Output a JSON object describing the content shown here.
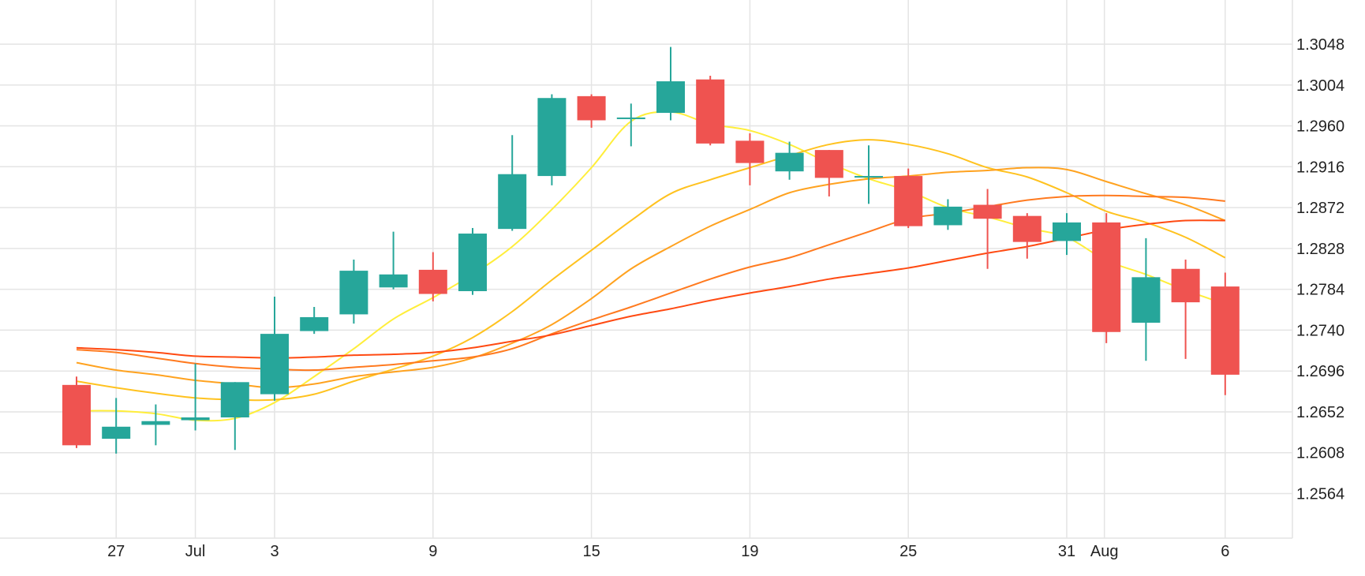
{
  "chart_data": {
    "type": "candlestick",
    "colors": {
      "up": "#26a69a",
      "down": "#ef5350",
      "grid": "#e4e4e4",
      "ma_5": "#ffee3b",
      "ma_10": "#ffc21f",
      "ma_20": "#ffa21f",
      "ma_30": "#ff7a1f",
      "ma_60": "#ff4a12"
    },
    "x_ticks": [
      "27",
      "Jul",
      "3",
      "9",
      "15",
      "19",
      "25",
      "31",
      "Aug",
      "6"
    ],
    "y_ticks": [
      "1.3048",
      "1.3004",
      "1.2960",
      "1.2916",
      "1.2872",
      "1.2828",
      "1.2784",
      "1.2740",
      "1.2696",
      "1.2652",
      "1.2608",
      "1.2564"
    ],
    "ylim": [
      1.2516,
      1.3092
    ],
    "candles": [
      {
        "date": "2018-06-26",
        "open": 1.2681,
        "high": 1.269,
        "low": 1.2613,
        "close": 1.2616
      },
      {
        "date": "2018-06-27",
        "open": 1.2623,
        "high": 1.2667,
        "low": 1.2607,
        "close": 1.2636
      },
      {
        "date": "2018-06-28",
        "open": 1.2638,
        "high": 1.266,
        "low": 1.2616,
        "close": 1.2642
      },
      {
        "date": "2018-06-29",
        "open": 1.2643,
        "high": 1.2704,
        "low": 1.2632,
        "close": 1.2646
      },
      {
        "date": "2018-07-02",
        "open": 1.2646,
        "high": 1.2684,
        "low": 1.2611,
        "close": 1.2684
      },
      {
        "date": "2018-07-03",
        "open": 1.2671,
        "high": 1.2776,
        "low": 1.2664,
        "close": 1.2736
      },
      {
        "date": "2018-07-04",
        "open": 1.2739,
        "high": 1.2765,
        "low": 1.2736,
        "close": 1.2754
      },
      {
        "date": "2018-07-05",
        "open": 1.2757,
        "high": 1.2816,
        "low": 1.2747,
        "close": 1.2804
      },
      {
        "date": "2018-07-06",
        "open": 1.2786,
        "high": 1.2846,
        "low": 1.2784,
        "close": 1.28
      },
      {
        "date": "2018-07-09",
        "open": 1.2805,
        "high": 1.2824,
        "low": 1.2771,
        "close": 1.2779
      },
      {
        "date": "2018-07-10",
        "open": 1.2782,
        "high": 1.285,
        "low": 1.2778,
        "close": 1.2844
      },
      {
        "date": "2018-07-11",
        "open": 1.2849,
        "high": 1.295,
        "low": 1.2847,
        "close": 1.2908
      },
      {
        "date": "2018-07-12",
        "open": 1.2906,
        "high": 1.2994,
        "low": 1.2896,
        "close": 1.299
      },
      {
        "date": "2018-07-13",
        "open": 1.2992,
        "high": 1.2994,
        "low": 1.2958,
        "close": 1.2966
      },
      {
        "date": "2018-07-16",
        "open": 1.2969,
        "high": 1.2984,
        "low": 1.2938,
        "close": 1.2969
      },
      {
        "date": "2018-07-17",
        "open": 1.2974,
        "high": 1.3045,
        "low": 1.2966,
        "close": 1.3008
      },
      {
        "date": "2018-07-18",
        "open": 1.301,
        "high": 1.3014,
        "low": 1.2939,
        "close": 1.2941
      },
      {
        "date": "2018-07-19",
        "open": 1.2944,
        "high": 1.2952,
        "low": 1.2896,
        "close": 1.292
      },
      {
        "date": "2018-07-20",
        "open": 1.2911,
        "high": 1.2943,
        "low": 1.2902,
        "close": 1.2931
      },
      {
        "date": "2018-07-23",
        "open": 1.2934,
        "high": 1.2934,
        "low": 1.2884,
        "close": 1.2904
      },
      {
        "date": "2018-07-24",
        "open": 1.2906,
        "high": 1.2939,
        "low": 1.2876,
        "close": 1.2906
      },
      {
        "date": "2018-07-25",
        "open": 1.2906,
        "high": 1.2914,
        "low": 1.285,
        "close": 1.2852
      },
      {
        "date": "2018-07-26",
        "open": 1.2853,
        "high": 1.2881,
        "low": 1.2848,
        "close": 1.2873
      },
      {
        "date": "2018-07-27",
        "open": 1.2875,
        "high": 1.2892,
        "low": 1.2806,
        "close": 1.286
      },
      {
        "date": "2018-07-30",
        "open": 1.2863,
        "high": 1.2866,
        "low": 1.2817,
        "close": 1.2835
      },
      {
        "date": "2018-07-31",
        "open": 1.2836,
        "high": 1.2866,
        "low": 1.2821,
        "close": 1.2856
      },
      {
        "date": "2018-08-01",
        "open": 1.2856,
        "high": 1.2866,
        "low": 1.2726,
        "close": 1.2738
      },
      {
        "date": "2018-08-02",
        "open": 1.2748,
        "high": 1.2839,
        "low": 1.2707,
        "close": 1.2797
      },
      {
        "date": "2018-08-03",
        "open": 1.2806,
        "high": 1.2816,
        "low": 1.2709,
        "close": 1.277
      },
      {
        "date": "2018-08-06",
        "open": 1.2787,
        "high": 1.2802,
        "low": 1.267,
        "close": 1.2692
      }
    ],
    "moving_averages": [
      {
        "color_key": "ma_5",
        "values": [
          1.2653,
          1.2653,
          1.265,
          1.2643,
          1.2645,
          1.2662,
          1.269,
          1.272,
          1.2752,
          1.2775,
          1.28,
          1.283,
          1.287,
          1.2915,
          1.2965,
          1.2975,
          1.2962,
          1.2955,
          1.294,
          1.292,
          1.2903,
          1.289,
          1.2872,
          1.2862,
          1.285,
          1.284,
          1.2815,
          1.28,
          1.2783,
          1.2768
        ]
      },
      {
        "color_key": "ma_10",
        "values": [
          1.2685,
          1.2678,
          1.2672,
          1.2667,
          1.2665,
          1.2665,
          1.2671,
          1.2685,
          1.2698,
          1.2712,
          1.2732,
          1.276,
          1.2794,
          1.2826,
          1.2858,
          1.2887,
          1.2902,
          1.2915,
          1.2928,
          1.294,
          1.2945,
          1.294,
          1.293,
          1.2915,
          1.2905,
          1.2888,
          1.2868,
          1.2856,
          1.284,
          1.2818
        ]
      },
      {
        "color_key": "ma_20",
        "values": [
          1.2705,
          1.2697,
          1.2692,
          1.2686,
          1.2682,
          1.2678,
          1.2682,
          1.269,
          1.2695,
          1.27,
          1.271,
          1.2726,
          1.2746,
          1.2774,
          1.2806,
          1.283,
          1.2852,
          1.287,
          1.2888,
          1.2897,
          1.2903,
          1.2906,
          1.291,
          1.2912,
          1.2915,
          1.2913,
          1.29,
          1.2887,
          1.2875,
          1.2858
        ]
      },
      {
        "color_key": "ma_30",
        "values": [
          1.2719,
          1.2716,
          1.271,
          1.2704,
          1.27,
          1.2698,
          1.2697,
          1.27,
          1.2703,
          1.2707,
          1.2711,
          1.272,
          1.2736,
          1.2751,
          1.2765,
          1.278,
          1.2795,
          1.2808,
          1.2818,
          1.2832,
          1.2846,
          1.286,
          1.2866,
          1.2873,
          1.288,
          1.2884,
          1.2885,
          1.2884,
          1.2883,
          1.2879
        ]
      },
      {
        "color_key": "ma_60",
        "values": [
          1.2721,
          1.2719,
          1.2716,
          1.2712,
          1.2711,
          1.271,
          1.2711,
          1.2713,
          1.2714,
          1.2716,
          1.2721,
          1.2728,
          1.2735,
          1.2745,
          1.2755,
          1.2763,
          1.2772,
          1.278,
          1.2787,
          1.2795,
          1.2801,
          1.2807,
          1.2815,
          1.2823,
          1.283,
          1.2839,
          1.2848,
          1.2854,
          1.2858,
          1.2858
        ]
      }
    ]
  }
}
